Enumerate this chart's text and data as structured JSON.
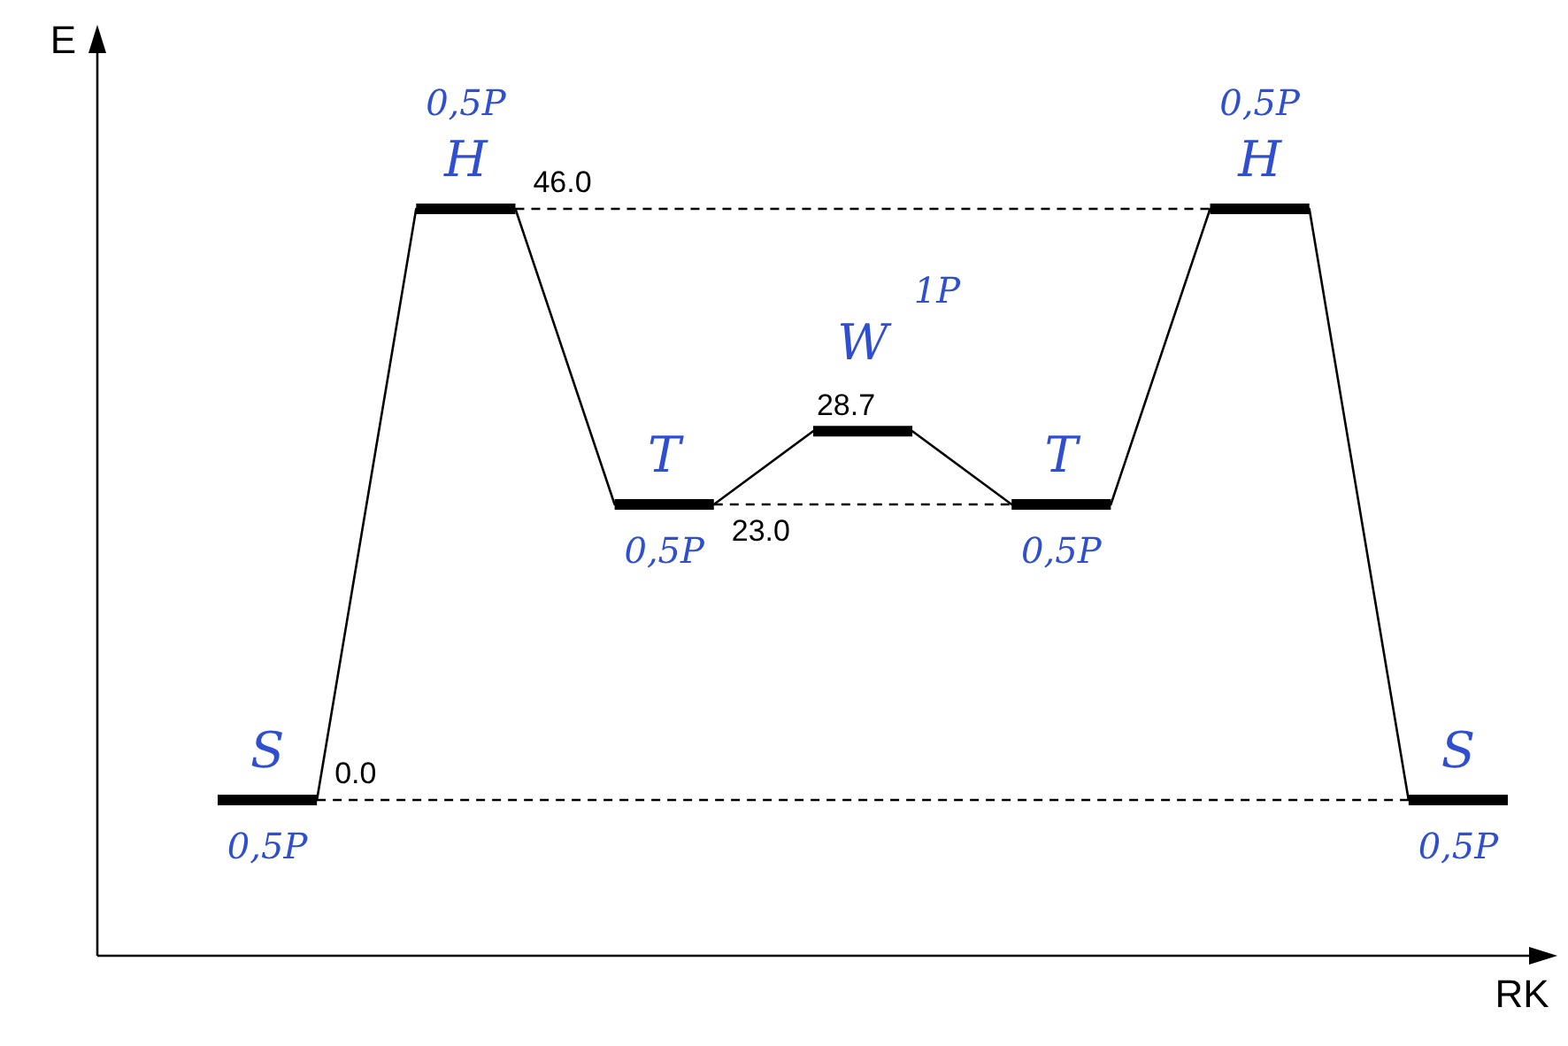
{
  "chart_data": {
    "type": "line",
    "xlabel": "RK",
    "ylabel": "E",
    "legend": false,
    "categories": [
      null,
      null,
      null,
      null,
      null,
      null,
      null,
      null,
      null,
      null,
      null,
      null,
      null,
      null
    ],
    "series": [
      {
        "color": "#000000",
        "values": [
          0,
          0,
          46,
          46,
          23,
          23,
          28.7,
          28.7,
          23,
          23,
          46,
          46,
          0,
          0
        ],
        "value_labels": [
          null,
          "0.0",
          null,
          "46.0",
          null,
          "23.0",
          "28.7",
          null,
          null,
          null,
          null,
          null,
          null,
          null
        ]
      }
    ],
    "ref_lines": [
      {
        "axis": "y",
        "value": 46,
        "line_style": "dashed"
      },
      {
        "axis": "y",
        "value": 23,
        "line_style": "dashed"
      },
      {
        "axis": "y",
        "value": 0,
        "line_style": "dashed"
      }
    ],
    "annotations": [
      "S",
      "0,5P",
      "H",
      "0,5P",
      "T",
      "0,5P",
      "W",
      "1P",
      "T",
      "0,5P",
      "H",
      "0,5P",
      "S",
      "0,5P"
    ]
  }
}
